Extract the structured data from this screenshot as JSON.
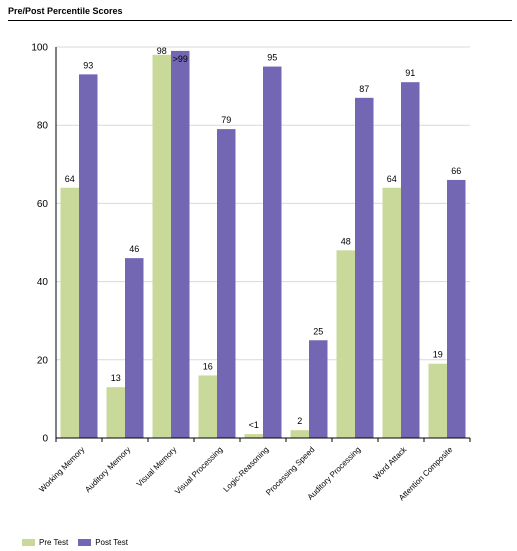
{
  "page": {
    "title": "Pre/Post Percentile Scores"
  },
  "chart_data": {
    "type": "bar",
    "title": "Pre/Post Percentile Scores",
    "xlabel": "",
    "ylabel": "",
    "ylim": [
      0,
      100
    ],
    "yticks": [
      0,
      20,
      40,
      60,
      80,
      100
    ],
    "grid": true,
    "legend_position": "bottom-left",
    "categories": [
      "Working Memory",
      "Auditory Memory",
      "Visual Memory",
      "Visual Processing",
      "Logic-Reasoning",
      "Processing Speed",
      "Auditory Processing",
      "Word Attack",
      "Attention Composite"
    ],
    "series": [
      {
        "name": "Pre Test",
        "color": "#c9d99a",
        "values": [
          64,
          13,
          98,
          16,
          1,
          2,
          48,
          64,
          19
        ],
        "labels": [
          "64",
          "13",
          "98",
          "16",
          "<1",
          "2",
          "48",
          "64",
          "19"
        ]
      },
      {
        "name": "Post Test",
        "color": "#7366b3",
        "values": [
          93,
          46,
          99,
          79,
          95,
          25,
          87,
          91,
          66
        ],
        "labels": [
          "93",
          "46",
          ">99",
          "79",
          "95",
          "25",
          "87",
          "91",
          "66"
        ]
      }
    ]
  }
}
